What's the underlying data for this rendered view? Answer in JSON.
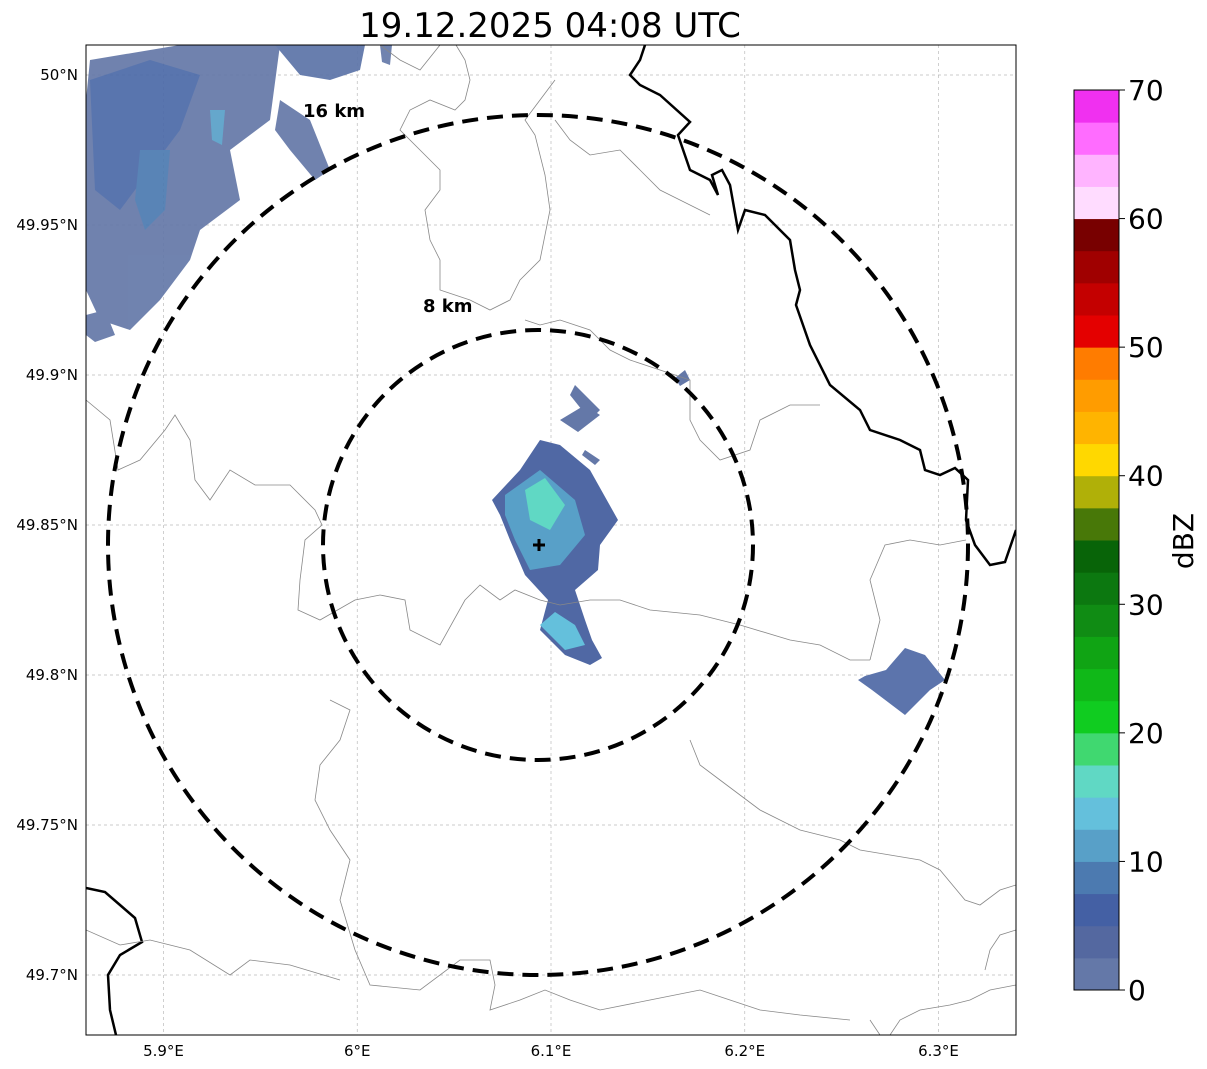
{
  "title": "19.12.2025 04:08 UTC",
  "map": {
    "extent": {
      "lon_min": 5.86,
      "lon_max": 6.34,
      "lat_min": 49.68,
      "lat_max": 50.01
    },
    "radar_site": {
      "lon": 6.095,
      "lat": 49.843
    },
    "x_ticks": [
      {
        "value": 5.9,
        "label": "5.9°E"
      },
      {
        "value": 6.0,
        "label": "6°E"
      },
      {
        "value": 6.1,
        "label": "6.1°E"
      },
      {
        "value": 6.2,
        "label": "6.2°E"
      },
      {
        "value": 6.3,
        "label": "6.3°E"
      }
    ],
    "y_ticks": [
      {
        "value": 50.0,
        "label": "50°N"
      },
      {
        "value": 49.95,
        "label": "49.95°N"
      },
      {
        "value": 49.9,
        "label": "49.9°N"
      },
      {
        "value": 49.85,
        "label": "49.85°N"
      },
      {
        "value": 49.8,
        "label": "49.8°N"
      },
      {
        "value": 49.75,
        "label": "49.75°N"
      },
      {
        "value": 49.7,
        "label": "49.7°N"
      }
    ],
    "range_rings": [
      {
        "radius_km": 8,
        "label": "8 km"
      },
      {
        "radius_km": 16,
        "label": "16 km"
      }
    ],
    "grid": true
  },
  "colorbar": {
    "label": "dBZ",
    "ticks": [
      "0",
      "10",
      "20",
      "30",
      "40",
      "50",
      "60",
      "70"
    ],
    "min": 0,
    "max": 70,
    "step": 2.5,
    "colors": [
      "#6478a8",
      "#5468a0",
      "#4460a4",
      "#4c7ab0",
      "#58a0c8",
      "#64c0dc",
      "#60d8c4",
      "#40d870",
      "#10cc20",
      "#10b818",
      "#10a414",
      "#108c14",
      "#0c7810",
      "#086408",
      "#487808",
      "#b0b008",
      "#ffd800",
      "#ffb400",
      "#ff9c00",
      "#ff7c00",
      "#e40000",
      "#c40000",
      "#a00000",
      "#780000",
      "#ffdcff",
      "#ffb4ff",
      "#ff6cff",
      "#f030f0"
    ]
  }
}
